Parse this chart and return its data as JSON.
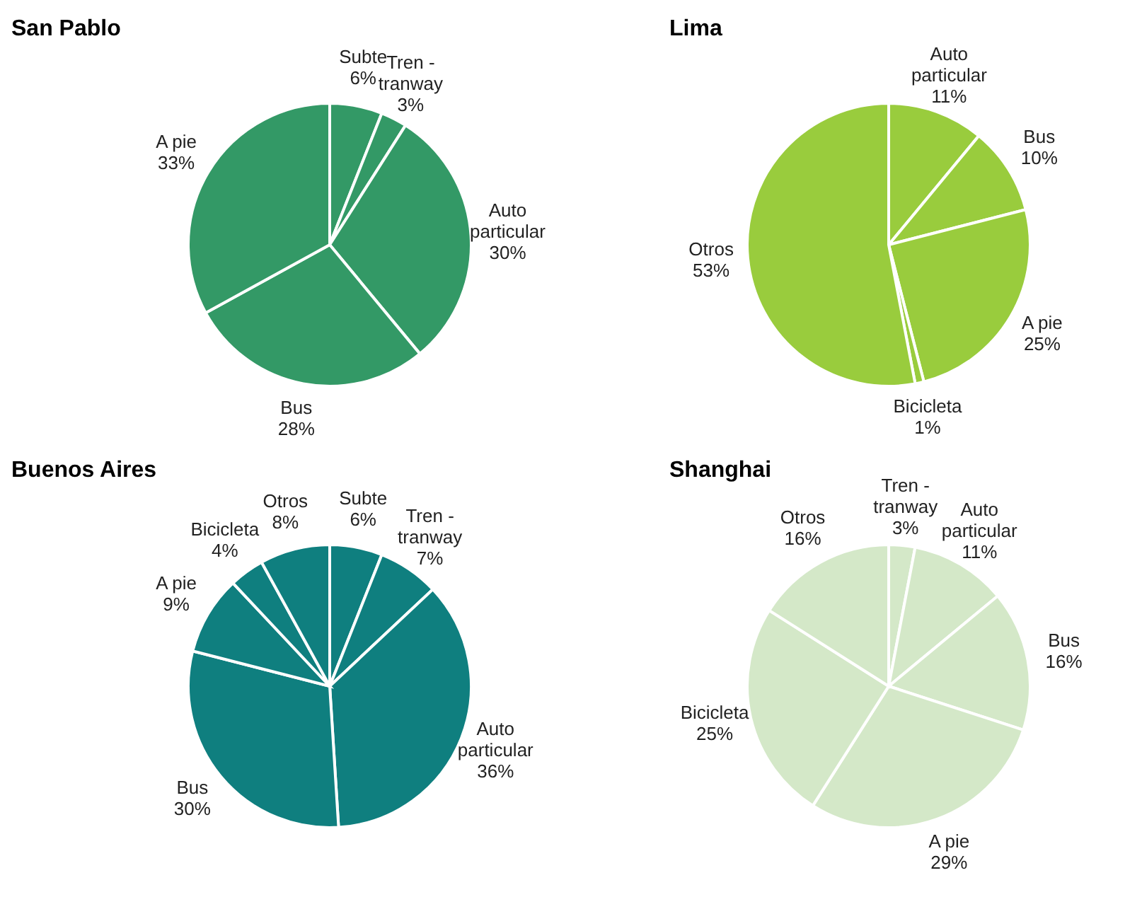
{
  "chart_data": [
    {
      "type": "pie",
      "title": "San Pablo",
      "categories": [
        "Subte",
        "Tren - tranway",
        "Auto particular",
        "Bus",
        "A pie"
      ],
      "values": [
        6,
        3,
        30,
        28,
        33
      ],
      "value_labels": [
        "6%",
        "3%",
        "30%",
        "28%",
        "33%"
      ],
      "colors": [
        "#339966",
        "#339966",
        "#339966",
        "#339966",
        "#339966"
      ]
    },
    {
      "type": "pie",
      "title": "Lima",
      "categories": [
        "Auto particular",
        "Bus",
        "A pie",
        "Bicicleta",
        "Otros"
      ],
      "values": [
        11,
        10,
        25,
        1,
        53
      ],
      "value_labels": [
        "11%",
        "10%",
        "25%",
        "1%",
        "53%"
      ],
      "colors": [
        "#99cc3d",
        "#99cc3d",
        "#99cc3d",
        "#99cc3d",
        "#99cc3d"
      ]
    },
    {
      "type": "pie",
      "title": "Buenos Aires",
      "categories": [
        "Subte",
        "Tren - tranway",
        "Auto particular",
        "Bus",
        "A pie",
        "Bicicleta",
        "Otros"
      ],
      "values": [
        6,
        7,
        36,
        30,
        9,
        4,
        8
      ],
      "value_labels": [
        "6%",
        "7%",
        "36%",
        "30%",
        "9%",
        "4%",
        "8%"
      ],
      "colors": [
        "#0f7f7f",
        "#0f7f7f",
        "#0f7f7f",
        "#0f7f7f",
        "#0f7f7f",
        "#0f7f7f",
        "#0f7f7f"
      ]
    },
    {
      "type": "pie",
      "title": "Shanghai",
      "categories": [
        "Tren - tranway",
        "Auto particular",
        "Bus",
        "A pie",
        "Bicicleta",
        "Otros"
      ],
      "values": [
        3,
        11,
        16,
        29,
        25,
        16
      ],
      "value_labels": [
        "3%",
        "11%",
        "16%",
        "29%",
        "25%",
        "16%"
      ],
      "colors": [
        "#d4e8c8",
        "#d4e8c8",
        "#d4e8c8",
        "#d4e8c8",
        "#d4e8c8",
        "#d4e8c8"
      ]
    }
  ]
}
